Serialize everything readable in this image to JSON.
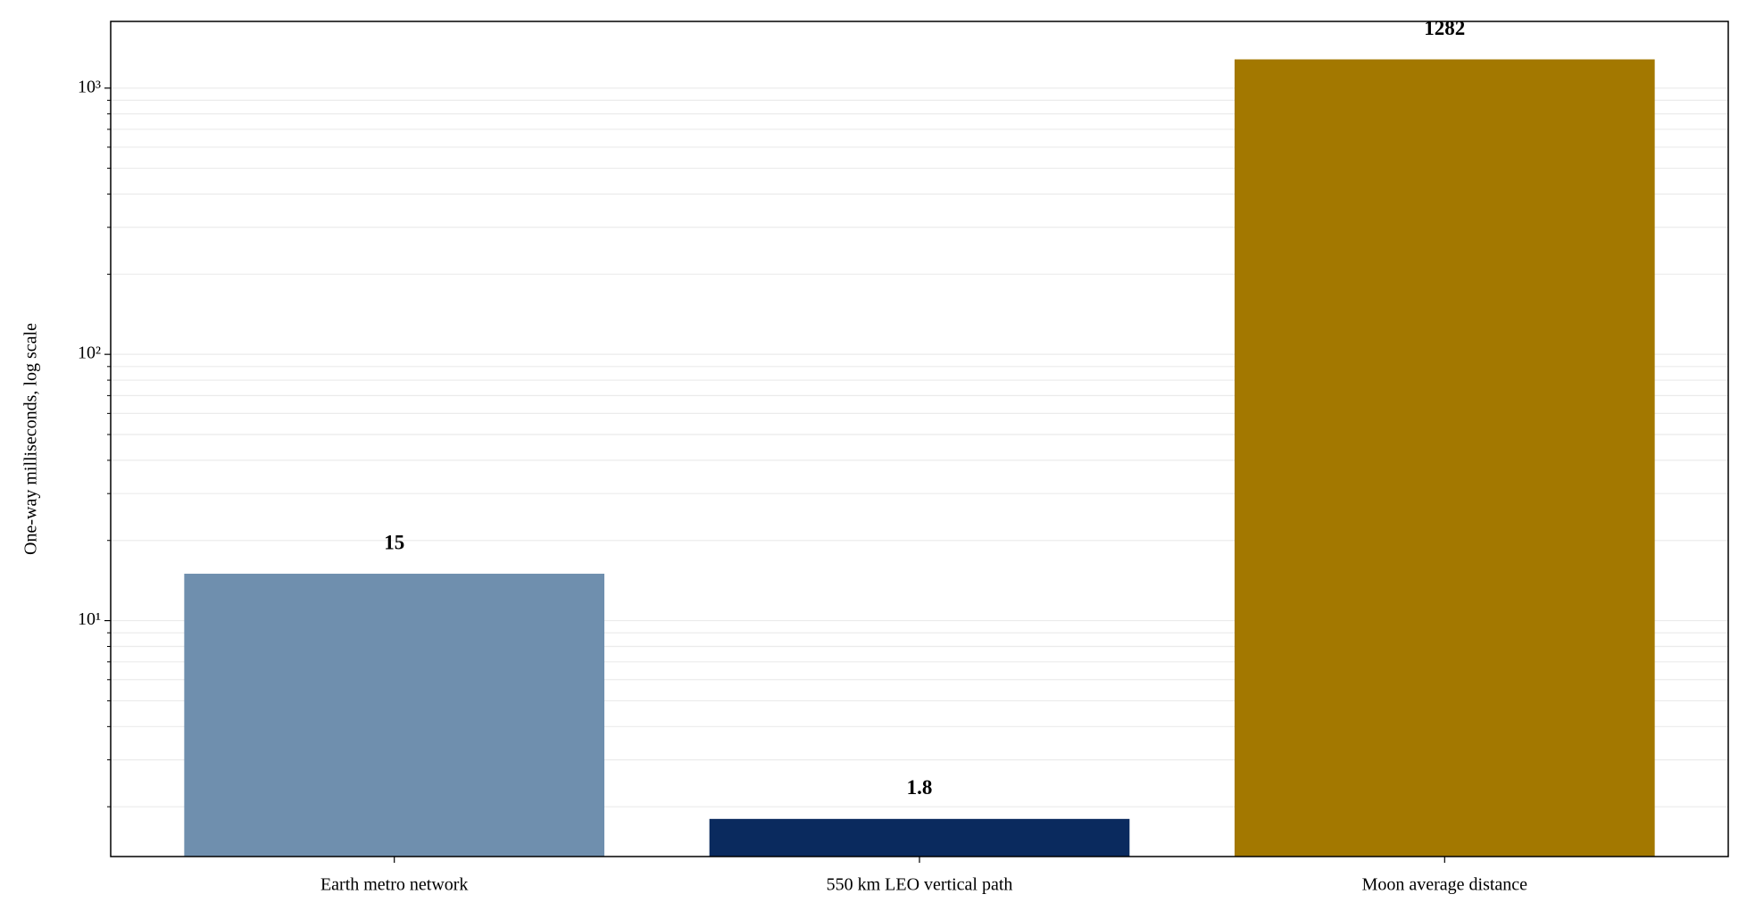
{
  "chart_data": {
    "type": "bar",
    "y_label": "One-way milliseconds, log scale",
    "categories": [
      "Earth metro network",
      "550 km LEO vertical path",
      "Moon average distance"
    ],
    "values": [
      15,
      1.8,
      1282
    ],
    "colors": [
      "#6f8fae",
      "#0a2a5e",
      "#a37800"
    ],
    "log_y": true,
    "ylim": [
      1.3,
      1780
    ],
    "yticks": [
      {
        "value": 10,
        "label": "10¹"
      },
      {
        "value": 100,
        "label": "10²"
      },
      {
        "value": 1000,
        "label": "10³"
      }
    ],
    "yticks_minor": [
      2,
      3,
      4,
      5,
      6,
      7,
      8,
      9,
      20,
      30,
      40,
      50,
      60,
      70,
      80,
      90,
      200,
      300,
      400,
      500,
      600,
      700,
      800,
      900
    ],
    "grid": true
  }
}
